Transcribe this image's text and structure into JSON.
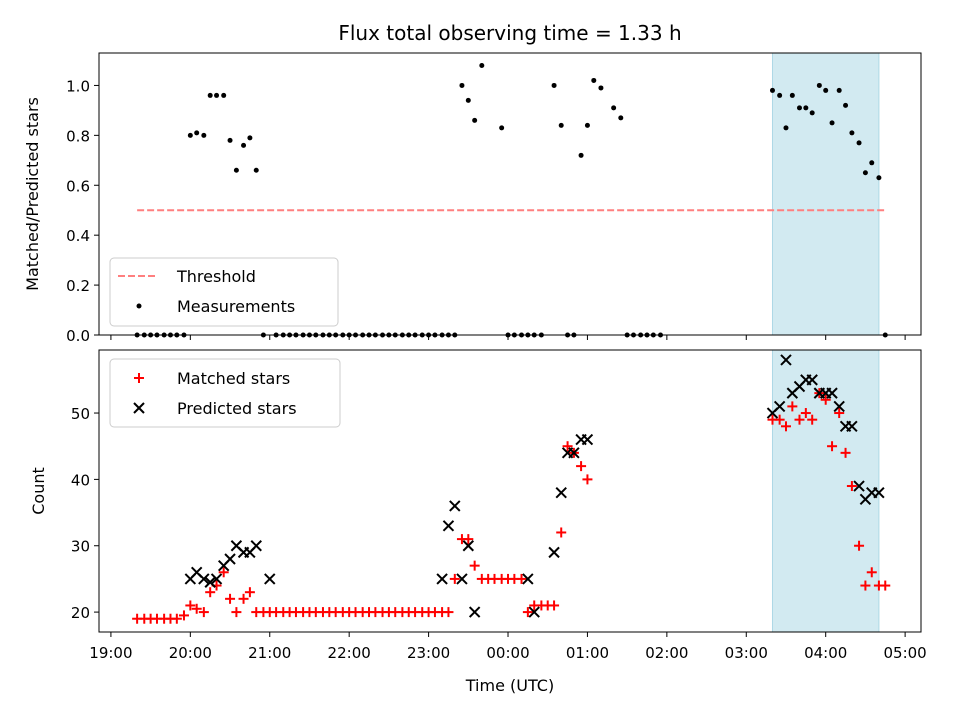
{
  "chart_data": [
    {
      "type": "scatter",
      "title": "Flux total observing time = 1.33 h",
      "ylabel": "Matched/Predicted stars",
      "xlabel": "",
      "ylim": [
        0,
        1.13
      ],
      "yticks": [
        "0.0",
        "0.2",
        "0.4",
        "0.6",
        "0.8",
        "1.0"
      ],
      "ytick_values": [
        0,
        0.2,
        0.4,
        0.6,
        0.8,
        1.0
      ],
      "x_unit": "hours since 19:00 UTC",
      "xlim": [
        -0.15,
        10.2
      ],
      "highlight_span": [
        8.33,
        9.67
      ],
      "highlight_color": "#add8e6",
      "threshold": {
        "name": "Threshold",
        "value": 0.5,
        "x_range": [
          0.33,
          9.75
        ],
        "color": "#ff7f7f"
      },
      "legend": {
        "position": "lower-left",
        "entries": [
          "Threshold",
          "Measurements"
        ]
      },
      "series": [
        {
          "name": "Measurements",
          "color": "#000000",
          "x": [
            0.33,
            0.42,
            0.5,
            0.58,
            0.67,
            0.75,
            0.83,
            0.92,
            1.0,
            1.08,
            1.17,
            1.25,
            1.33,
            1.42,
            1.5,
            1.58,
            1.67,
            1.75,
            1.83,
            1.92,
            2.08,
            2.17,
            2.25,
            2.33,
            2.42,
            2.5,
            2.58,
            2.67,
            2.75,
            2.83,
            2.92,
            3.0,
            3.08,
            3.17,
            3.25,
            3.33,
            3.42,
            3.5,
            3.58,
            3.67,
            3.75,
            3.83,
            3.92,
            4.0,
            4.08,
            4.17,
            4.25,
            4.33,
            4.42,
            4.5,
            4.58,
            4.67,
            4.92,
            5.0,
            5.08,
            5.17,
            5.25,
            5.33,
            5.42,
            5.58,
            5.67,
            5.75,
            5.83,
            5.92,
            6.0,
            6.08,
            6.17,
            6.33,
            6.42,
            6.5,
            6.58,
            6.67,
            6.75,
            6.83,
            6.92,
            8.33,
            8.42,
            8.5,
            8.58,
            8.67,
            8.75,
            8.83,
            8.92,
            9.0,
            9.08,
            9.17,
            9.25,
            9.33,
            9.42,
            9.5,
            9.58,
            9.67,
            9.75
          ],
          "y": [
            0,
            0,
            0,
            0,
            0,
            0,
            0,
            0,
            0.8,
            0.81,
            0.8,
            0.96,
            0.96,
            0.96,
            0.78,
            0.66,
            0.76,
            0.79,
            0.66,
            0,
            0,
            0,
            0,
            0,
            0,
            0,
            0,
            0,
            0,
            0,
            0,
            0,
            0,
            0,
            0,
            0,
            0,
            0,
            0,
            0,
            0,
            0,
            0,
            0,
            0,
            0,
            0,
            0,
            1.0,
            0.94,
            0.86,
            1.08,
            0.83,
            0,
            0,
            0,
            0,
            0,
            0,
            1.0,
            0.84,
            0,
            0,
            0.72,
            0.84,
            1.02,
            0.99,
            0.91,
            0.87,
            0,
            0,
            0,
            0,
            0,
            0,
            0.98,
            0.96,
            0.83,
            0.96,
            0.91,
            0.91,
            0.89,
            1.0,
            0.98,
            0.85,
            0.98,
            0.92,
            0.81,
            0.77,
            0.65,
            0.69,
            0.63,
            0
          ]
        }
      ]
    },
    {
      "type": "scatter",
      "xlabel": "Time (UTC)",
      "ylabel": "Count",
      "ylim": [
        17,
        59.5
      ],
      "yticks": [
        "20",
        "30",
        "40",
        "50"
      ],
      "ytick_values": [
        20,
        30,
        40,
        50
      ],
      "xticks": [
        "19:00",
        "20:00",
        "21:00",
        "22:00",
        "23:00",
        "00:00",
        "01:00",
        "02:00",
        "03:00",
        "04:00",
        "05:00"
      ],
      "xtick_values": [
        0,
        1,
        2,
        3,
        4,
        5,
        6,
        7,
        8,
        9,
        10
      ],
      "x_unit": "hours since 19:00 UTC",
      "xlim": [
        -0.15,
        10.2
      ],
      "highlight_span": [
        8.33,
        9.67
      ],
      "highlight_color": "#add8e6",
      "legend": {
        "position": "upper-left",
        "entries": [
          "Matched stars",
          "Predicted stars"
        ]
      },
      "series": [
        {
          "name": "Matched stars",
          "marker": "plus",
          "color": "#ff0000",
          "x": [
            0.33,
            0.42,
            0.5,
            0.58,
            0.67,
            0.75,
            0.83,
            0.92,
            1.0,
            1.08,
            1.17,
            1.25,
            1.33,
            1.42,
            1.5,
            1.58,
            1.67,
            1.75,
            1.83,
            1.92,
            2.0,
            2.08,
            2.17,
            2.25,
            2.33,
            2.42,
            2.5,
            2.58,
            2.67,
            2.75,
            2.83,
            2.92,
            3.0,
            3.08,
            3.17,
            3.25,
            3.33,
            3.42,
            3.5,
            3.58,
            3.67,
            3.75,
            3.83,
            3.92,
            4.0,
            4.08,
            4.17,
            4.25,
            4.33,
            4.42,
            4.5,
            4.58,
            4.67,
            4.75,
            4.83,
            4.92,
            5.0,
            5.08,
            5.17,
            5.25,
            5.33,
            5.42,
            5.5,
            5.58,
            5.67,
            5.75,
            5.83,
            5.92,
            6.0,
            8.33,
            8.42,
            8.5,
            8.58,
            8.67,
            8.75,
            8.83,
            8.92,
            9.0,
            9.08,
            9.17,
            9.25,
            9.33,
            9.42,
            9.5,
            9.58,
            9.67,
            9.75
          ],
          "y": [
            19,
            19,
            19,
            19,
            19,
            19,
            19,
            19.5,
            21,
            20.5,
            20,
            23,
            24,
            26,
            22,
            20,
            22,
            23,
            20,
            20,
            20,
            20,
            20,
            20,
            20,
            20,
            20,
            20,
            20,
            20,
            20,
            20,
            20,
            20,
            20,
            20,
            20,
            20,
            20,
            20,
            20,
            20,
            20,
            20,
            20,
            20,
            20,
            20,
            25,
            31,
            31,
            27,
            25,
            25,
            25,
            25,
            25,
            25,
            25,
            20,
            21,
            21,
            21,
            21,
            32,
            45,
            44,
            42,
            40,
            49,
            49,
            48,
            51,
            49,
            50,
            49,
            53,
            52,
            45,
            50,
            44,
            39,
            30,
            24,
            26,
            24,
            24
          ]
        },
        {
          "name": "Predicted stars",
          "marker": "x",
          "color": "#000000",
          "x": [
            1.0,
            1.08,
            1.17,
            1.25,
            1.33,
            1.42,
            1.5,
            1.58,
            1.67,
            1.75,
            1.83,
            2.0,
            4.17,
            4.25,
            4.33,
            4.42,
            4.5,
            4.58,
            5.25,
            5.33,
            5.58,
            5.67,
            5.75,
            5.83,
            5.92,
            6.0,
            8.33,
            8.42,
            8.5,
            8.58,
            8.67,
            8.75,
            8.83,
            8.92,
            9.0,
            9.08,
            9.17,
            9.25,
            9.33,
            9.42,
            9.5,
            9.58,
            9.67
          ],
          "y": [
            25,
            26,
            25,
            24.5,
            25,
            27,
            28,
            30,
            29,
            29,
            30,
            25,
            25,
            33,
            36,
            25,
            30,
            20,
            25,
            20,
            29,
            38,
            44,
            44,
            46,
            46,
            50,
            51,
            58,
            53,
            54,
            55,
            55,
            53,
            53,
            53,
            51,
            48,
            48,
            39,
            37,
            38,
            38
          ]
        }
      ]
    }
  ]
}
